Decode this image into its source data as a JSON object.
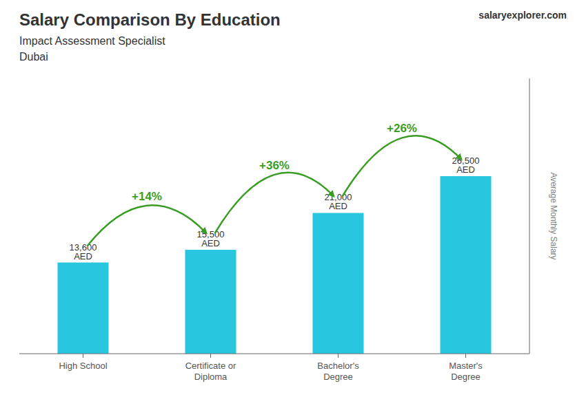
{
  "chart_data": {
    "type": "bar",
    "title": "Salary Comparison By Education",
    "subtitle": "Impact Assessment Specialist",
    "location": "Dubai",
    "ylabel": "Average Monthly Salary",
    "watermark": [
      "salary",
      "explorer",
      ".com"
    ],
    "categories": [
      "High School",
      "Certificate or\nDiploma",
      "Bachelor's\nDegree",
      "Master's\nDegree"
    ],
    "values": [
      13600,
      15500,
      21000,
      26500
    ],
    "value_labels": [
      "13,600 AED",
      "15,500 AED",
      "21,000 AED",
      "26,500 AED"
    ],
    "data_labels": true,
    "color": "#29c6e0",
    "ylim": [
      0,
      41075
    ],
    "tick_labels": false,
    "grid": false,
    "annotations": [
      {
        "text": "+14%",
        "from": "High School",
        "to": "Certificate or\nDiploma",
        "color": "#3a9d23"
      },
      {
        "text": "+36%",
        "from": "Certificate or\nDiploma",
        "to": "Bachelor's\nDegree",
        "color": "#3a9d23"
      },
      {
        "text": "+26%",
        "from": "Bachelor's\nDegree",
        "to": "Master's\nDegree",
        "color": "#3a9d23"
      }
    ]
  }
}
